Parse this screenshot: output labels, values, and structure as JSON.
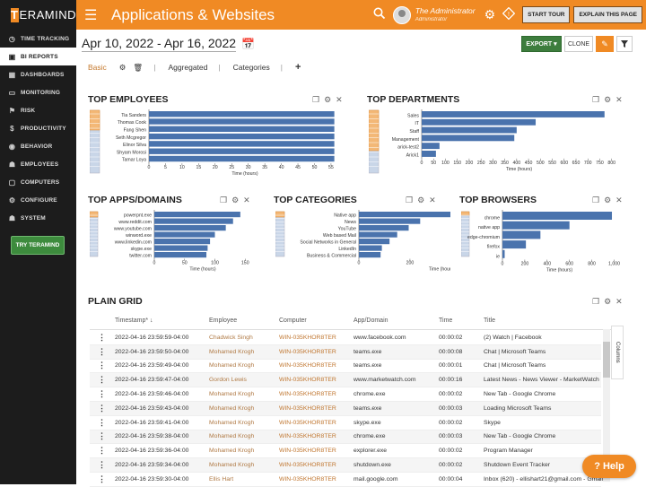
{
  "brand": {
    "logo_letter": "T",
    "logo_rest": "ERAMIND"
  },
  "sidebar": {
    "items": [
      {
        "label": "TIME TRACKING",
        "icon": "clock-icon",
        "active": false
      },
      {
        "label": "BI REPORTS",
        "icon": "bi-reports-icon",
        "active": true
      },
      {
        "label": "DASHBOARDS",
        "icon": "dashboard-icon",
        "active": false
      },
      {
        "label": "MONITORING",
        "icon": "monitor-icon",
        "active": false
      },
      {
        "label": "RISK",
        "icon": "risk-icon",
        "active": false
      },
      {
        "label": "PRODUCTIVITY",
        "icon": "dollar-icon",
        "active": false
      },
      {
        "label": "BEHAVIOR",
        "icon": "behavior-icon",
        "active": false
      },
      {
        "label": "EMPLOYEES",
        "icon": "employees-icon",
        "active": false
      },
      {
        "label": "COMPUTERS",
        "icon": "computer-icon",
        "active": false
      },
      {
        "label": "CONFIGURE",
        "icon": "configure-icon",
        "active": false
      },
      {
        "label": "SYSTEM",
        "icon": "system-icon",
        "active": false
      }
    ],
    "try_label": "TRY TERAMIND"
  },
  "header": {
    "title": "Applications & Websites",
    "user_name": "The Administrator",
    "user_role": "Administrator",
    "start_tour": "START TOUR",
    "explain": "EXPLAIN THIS PAGE"
  },
  "toolbar": {
    "date_range": "Apr 10, 2022 - Apr 16, 2022",
    "export_label": "EXPORT ▾",
    "clone_label": "CLONE"
  },
  "tabs": {
    "basic": "Basic",
    "aggregated": "Aggregated",
    "categories": "Categories",
    "add": "+"
  },
  "colors": {
    "accent": "#f08a24",
    "bar": "#4a73ad",
    "sidebar": "#1c1c1c",
    "export": "#3d7d3d"
  },
  "charts": {
    "employees": {
      "title": "TOP EMPLOYEES",
      "chart_data": {
        "type": "bar",
        "orientation": "horizontal",
        "categories": [
          "Tia Sanders",
          "Thomas Cook",
          "Fang Shen",
          "Seth Mcgregor",
          "Elinor Silva",
          "Shyam Morosi",
          "Tamar Loya"
        ],
        "values": [
          56,
          56,
          56,
          56,
          56,
          56,
          56
        ],
        "xlabel": "Time (hours)",
        "ticks": [
          0,
          5,
          10,
          15,
          20,
          25,
          30,
          35,
          40,
          45,
          50,
          55
        ],
        "xlim": [
          0,
          58
        ]
      }
    },
    "departments": {
      "title": "TOP DEPARTMENTS",
      "chart_data": {
        "type": "bar",
        "orientation": "horizontal",
        "categories": [
          "Sales",
          "IT",
          "Staff",
          "Management",
          "arick-test2",
          "Arick1"
        ],
        "values": [
          770,
          480,
          400,
          390,
          75,
          60
        ],
        "xlabel": "Time (hours)",
        "ticks": [
          0,
          50,
          100,
          150,
          200,
          250,
          300,
          350,
          400,
          450,
          500,
          550,
          600,
          650,
          700,
          750,
          800
        ],
        "xlim": [
          0,
          820
        ]
      }
    },
    "apps": {
      "title": "TOP APPS/DOMAINS",
      "chart_data": {
        "type": "bar",
        "orientation": "horizontal",
        "categories": [
          "powerpnt.exe",
          "www.reddit.com",
          "www.youtube.com",
          "winword.exe",
          "www.linkedin.com",
          "skype.exe",
          "twitter.com"
        ],
        "values": [
          142,
          130,
          118,
          100,
          92,
          88,
          86
        ],
        "xlabel": "Time (hours)",
        "ticks": [
          0,
          50,
          100,
          150
        ],
        "xlim": [
          0,
          160
        ]
      }
    },
    "categories": {
      "title": "TOP CATEGORIES",
      "chart_data": {
        "type": "bar",
        "orientation": "horizontal",
        "categories": [
          "Native app",
          "News",
          "YouTube",
          "Web based Mail",
          "Social Networks in General",
          "LinkedIn",
          "Business & Commercial"
        ],
        "values": [
          600,
          240,
          195,
          150,
          120,
          90,
          85
        ],
        "xlabel": "Time (hours)",
        "ticks": [
          0,
          200,
          400,
          600
        ],
        "xlim": [
          0,
          650
        ]
      }
    },
    "browsers": {
      "title": "TOP BROWSERS",
      "chart_data": {
        "type": "bar",
        "orientation": "horizontal",
        "categories": [
          "chrome",
          "native app",
          "edge-chromium",
          "firefox",
          "ie"
        ],
        "values": [
          0.98,
          0.6,
          0.34,
          0.21,
          0.02
        ],
        "xlabel": "Time (hours)",
        "ticks": [
          0,
          0.2,
          0.4,
          0.6,
          0.8,
          1.0
        ],
        "tick_labels": [
          "0",
          "200",
          "400",
          "600",
          "800",
          "1,000"
        ],
        "xlim": [
          0,
          1.02
        ]
      }
    }
  },
  "grid": {
    "title": "PLAIN GRID",
    "columns": [
      "Timestamp* ↓",
      "Employee",
      "Computer",
      "App/Domain",
      "Time",
      "Title"
    ],
    "columns_label": "Columns",
    "rows": [
      [
        "2022-04-16 23:59:59-04:00",
        "Chadwick Singh",
        "WIN-035KHOR8TER",
        "www.facebook.com",
        "00:00:02",
        "(2) Watch | Facebook"
      ],
      [
        "2022-04-16 23:59:50-04:00",
        "Mohamed Krogh",
        "WIN-035KHOR8TER",
        "teams.exe",
        "00:00:08",
        "Chat | Microsoft Teams"
      ],
      [
        "2022-04-16 23:59:49-04:00",
        "Mohamed Krogh",
        "WIN-035KHOR8TER",
        "teams.exe",
        "00:00:01",
        "Chat | Microsoft Teams"
      ],
      [
        "2022-04-16 23:59:47-04:00",
        "Gordon Lewis",
        "WIN-035KHOR8TER",
        "www.marketwatch.com",
        "00:00:16",
        "Latest News - News Viewer - MarketWatch"
      ],
      [
        "2022-04-16 23:59:46-04:00",
        "Mohamed Krogh",
        "WIN-035KHOR8TER",
        "chrome.exe",
        "00:00:02",
        "New Tab - Google Chrome"
      ],
      [
        "2022-04-16 23:59:43-04:00",
        "Mohamed Krogh",
        "WIN-035KHOR8TER",
        "teams.exe",
        "00:00:03",
        "Loading Microsoft Teams"
      ],
      [
        "2022-04-16 23:59:41-04:00",
        "Mohamed Krogh",
        "WIN-035KHOR8TER",
        "skype.exe",
        "00:00:02",
        "Skype"
      ],
      [
        "2022-04-16 23:59:38-04:00",
        "Mohamed Krogh",
        "WIN-035KHOR8TER",
        "chrome.exe",
        "00:00:03",
        "New Tab - Google Chrome"
      ],
      [
        "2022-04-16 23:59:36-04:00",
        "Mohamed Krogh",
        "WIN-035KHOR8TER",
        "explorer.exe",
        "00:00:02",
        "Program Manager"
      ],
      [
        "2022-04-16 23:59:34-04:00",
        "Mohamed Krogh",
        "WIN-035KHOR8TER",
        "shutdown.exe",
        "00:00:02",
        "Shutdown Event Tracker"
      ],
      [
        "2022-04-16 23:59:30-04:00",
        "Ellis Hart",
        "WIN-035KHOR8TER",
        "mail.google.com",
        "00:00:04",
        "Inbox (620) - ellishart21@gmail.com - Gmail"
      ]
    ]
  },
  "help_label": "? Help"
}
